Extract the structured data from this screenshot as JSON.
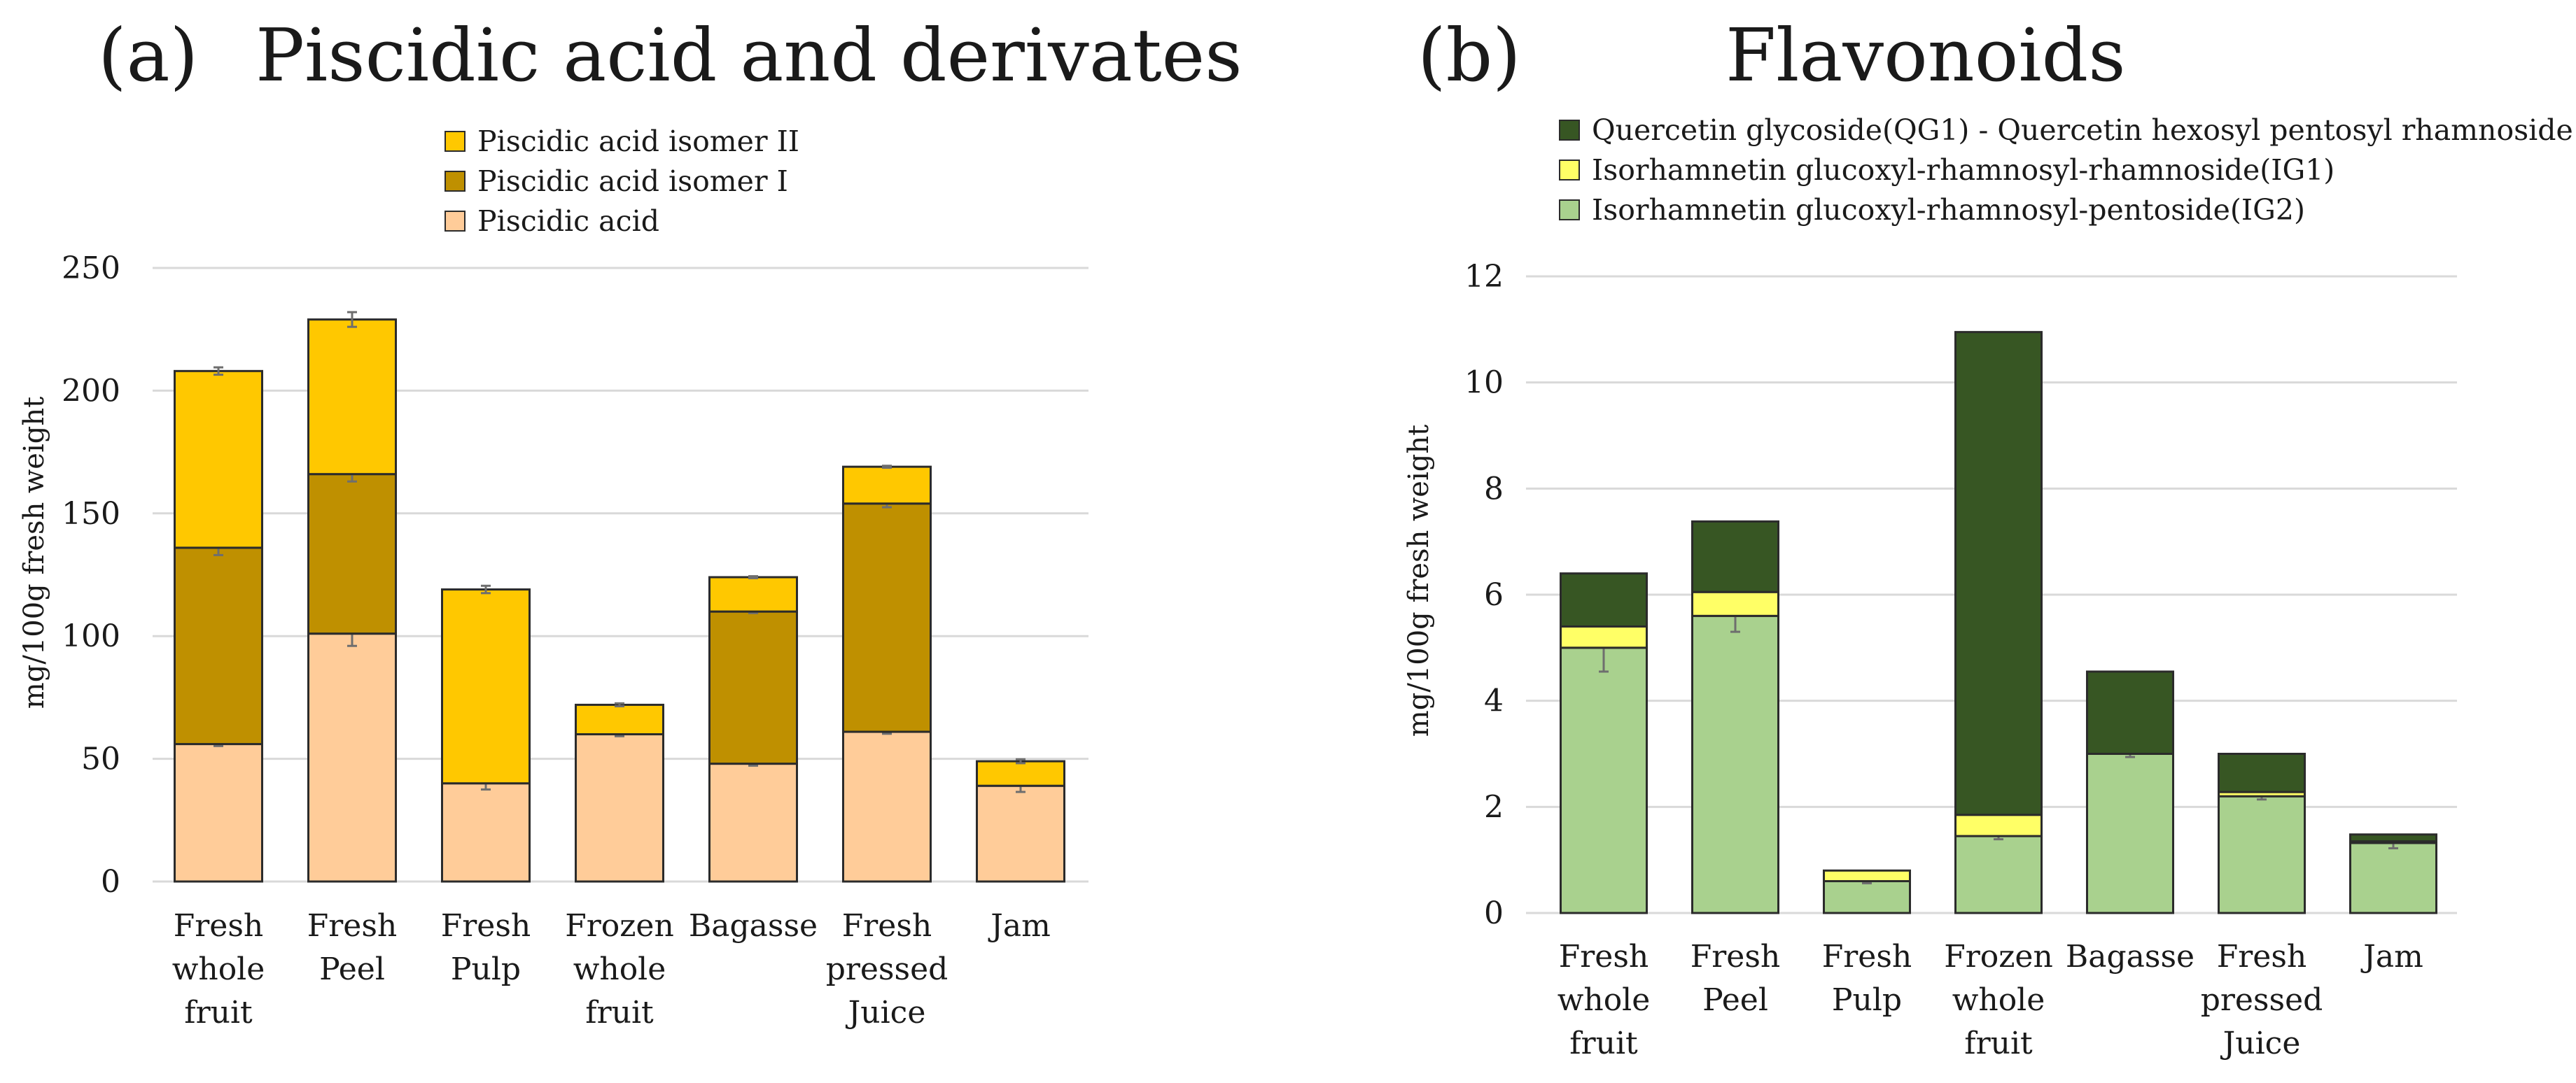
{
  "chart_data": [
    {
      "type": "bar",
      "stacked": true,
      "panel": "(a)",
      "title": "Piscidic acid and derivates",
      "xlabel": "",
      "ylabel": "mg/100g fresh weight",
      "ylim": [
        0,
        250
      ],
      "yticks": [
        0,
        50,
        100,
        150,
        200,
        250
      ],
      "categories": [
        [
          "Fresh",
          "whole",
          "fruit"
        ],
        [
          "Fresh",
          "Peel"
        ],
        [
          "Fresh",
          "Pulp"
        ],
        [
          "Frozen",
          "whole",
          "fruit"
        ],
        [
          "Bagasse"
        ],
        [
          "Fresh",
          "pressed",
          "Juice"
        ],
        [
          "Jam"
        ]
      ],
      "series": [
        {
          "name": "Piscidic acid",
          "color": "#FFCC99",
          "values": [
            56,
            101,
            40,
            60,
            48,
            61,
            39
          ],
          "errors": [
            0.8,
            5,
            2.5,
            0.8,
            0.8,
            0.8,
            2.5
          ]
        },
        {
          "name": "Piscidic acid isomer I",
          "color": "#BF9000",
          "values": [
            80,
            65,
            0,
            0,
            62,
            93,
            0
          ],
          "errors": [
            3,
            3,
            0,
            0,
            0.6,
            1.5,
            0
          ]
        },
        {
          "name": "Piscidic acid isomer II",
          "color": "#FFC800",
          "values": [
            72,
            63,
            79,
            12,
            14,
            15,
            10
          ],
          "errors": [
            1.5,
            3,
            1.5,
            0.6,
            0.4,
            0.4,
            0.8
          ]
        }
      ],
      "legend_order": [
        "Piscidic acid isomer II",
        "Piscidic acid isomer I",
        "Piscidic acid"
      ],
      "legend_position": "top"
    },
    {
      "type": "bar",
      "stacked": true,
      "panel": "(b)",
      "title": "Flavonoids",
      "xlabel": "",
      "ylabel": "mg/100g fresh weight",
      "ylim": [
        0,
        12
      ],
      "yticks": [
        0,
        2,
        4,
        6,
        8,
        10,
        12
      ],
      "categories": [
        [
          "Fresh",
          "whole",
          "fruit"
        ],
        [
          "Fresh",
          "Peel"
        ],
        [
          "Fresh",
          "Pulp"
        ],
        [
          "Frozen",
          "whole",
          "fruit"
        ],
        [
          "Bagasse"
        ],
        [
          "Fresh",
          "pressed",
          "Juice"
        ],
        [
          "Jam"
        ]
      ],
      "series": [
        {
          "name": "Isorhamnetin glucoxyl-rhamnosyl-pentoside(IG2)",
          "color": "#A9D18E",
          "values": [
            5.0,
            5.6,
            0.6,
            1.45,
            3.0,
            2.2,
            1.32
          ],
          "errors": [
            0.45,
            0.3,
            0.04,
            0.06,
            0.06,
            0.06,
            0.1
          ]
        },
        {
          "name": "Isorhamnetin glucoxyl-rhamnosyl-rhamnoside(IG1)",
          "color": "#FFFF66",
          "values": [
            0.4,
            0.45,
            0.2,
            0.4,
            0,
            0.08,
            0.03
          ],
          "errors": [
            0,
            0,
            0,
            0,
            0,
            0,
            0
          ]
        },
        {
          "name": "Quercetin glycoside(QG1) - Quercetin hexosyl pentosyl rhamnoside",
          "color": "#375623",
          "values": [
            1.0,
            1.33,
            0,
            9.1,
            1.55,
            0.72,
            0.13
          ],
          "errors": [
            0,
            0,
            0,
            0,
            0,
            0,
            0
          ]
        }
      ],
      "legend_order": [
        "Quercetin glycoside(QG1) - Quercetin hexosyl pentosyl rhamnoside",
        "Isorhamnetin glucoxyl-rhamnosyl-rhamnoside(IG1)",
        "Isorhamnetin glucoxyl-rhamnosyl-pentoside(IG2)"
      ],
      "legend_position": "top"
    }
  ]
}
